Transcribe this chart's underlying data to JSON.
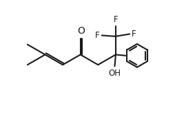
{
  "background": "#ffffff",
  "line_color": "#1a1a1a",
  "line_width": 1.5,
  "font_size": 8.5,
  "figsize": [
    2.83,
    1.7
  ],
  "dpi": 100,
  "xlim": [
    0,
    10
  ],
  "ylim": [
    0,
    6
  ]
}
